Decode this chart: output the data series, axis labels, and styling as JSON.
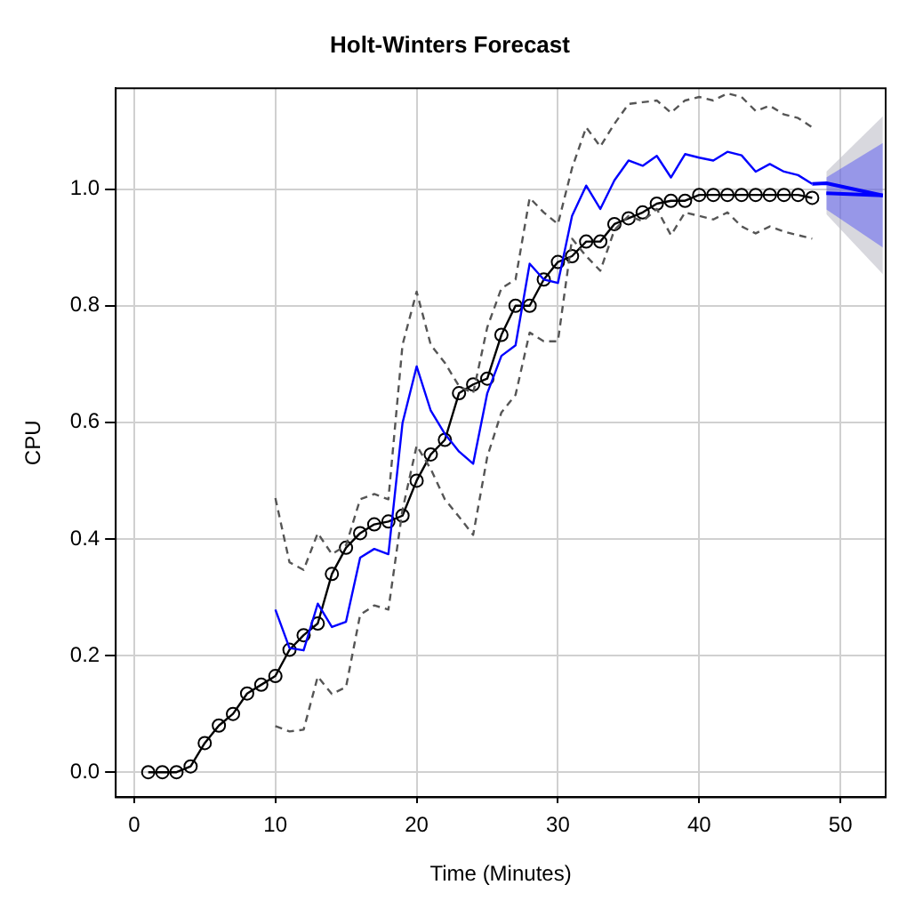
{
  "chart_data": {
    "type": "line",
    "title": "Holt-Winters Forecast",
    "xlabel": "Time (Minutes)",
    "ylabel": "CPU",
    "xlim": [
      -1.3,
      53.2
    ],
    "ylim": [
      -0.043,
      1.173
    ],
    "xticks": [
      0,
      10,
      20,
      30,
      40,
      50
    ],
    "yticks": [
      {
        "value": 0,
        "label": "0.0"
      },
      {
        "value": 0.2,
        "label": "0.2"
      },
      {
        "value": 0.4,
        "label": "0.4"
      },
      {
        "value": 0.6,
        "label": "0.6"
      },
      {
        "value": 0.8,
        "label": "0.8"
      },
      {
        "value": 1,
        "label": "1.0"
      }
    ],
    "grid": true,
    "legend": false,
    "line_style": "solid",
    "series": [
      {
        "color": "#0000ff",
        "x": [
          48,
          49,
          53
        ],
        "values": [
          1.009,
          1.01,
          0.989
        ],
        "lower": [
          null,
          0.957,
          0.854
        ],
        "upper": [
          null,
          1.03,
          1.125
        ],
        "marker": "none"
      },
      {
        "color": "#0000ff",
        "x": [
          49,
          53
        ],
        "values": [
          0.993,
          0.989
        ],
        "lower": [
          0.965,
          0.9
        ],
        "upper": [
          1.02,
          1.079
        ],
        "marker": "none"
      },
      {
        "color": "#000000",
        "marker": "circle",
        "x": [
          1,
          2,
          3,
          4,
          5,
          6,
          7,
          8,
          9,
          10,
          11,
          12,
          13,
          14,
          15,
          16,
          17,
          18,
          19,
          20,
          21,
          22,
          23,
          24,
          25,
          26,
          27,
          28,
          29,
          30,
          31,
          32,
          33,
          34,
          35,
          36,
          37,
          38,
          39,
          40,
          41,
          42,
          43,
          44,
          45,
          46,
          47,
          48
        ],
        "values": [
          0,
          0,
          0,
          0.01,
          0.05,
          0.08,
          0.1,
          0.135,
          0.15,
          0.165,
          0.21,
          0.235,
          0.255,
          0.34,
          0.385,
          0.41,
          0.425,
          0.43,
          0.44,
          0.5,
          0.545,
          0.57,
          0.65,
          0.665,
          0.675,
          0.75,
          0.8,
          0.8,
          0.845,
          0.875,
          0.885,
          0.91,
          0.91,
          0.94,
          0.95,
          0.96,
          0.975,
          0.98,
          0.98,
          0.99,
          0.99,
          0.99,
          0.99,
          0.99,
          0.99,
          0.99,
          0.99,
          0.985
        ]
      },
      {
        "color": "#0000ff",
        "marker": "none",
        "x": [
          10,
          11,
          12,
          13,
          14,
          15,
          16,
          17,
          18,
          19,
          20,
          21,
          22,
          23,
          24,
          25,
          26,
          27,
          28,
          29,
          30,
          31,
          32,
          33,
          34,
          35,
          36,
          37,
          38,
          39,
          40,
          41,
          42,
          43,
          44,
          45,
          46,
          47,
          48
        ],
        "values": [
          0.279,
          0.213,
          0.209,
          0.289,
          0.249,
          0.258,
          0.368,
          0.383,
          0.374,
          0.599,
          0.696,
          0.62,
          0.58,
          0.55,
          0.529,
          0.65,
          0.714,
          0.732,
          0.872,
          0.845,
          0.839,
          0.954,
          1.006,
          0.966,
          1.015,
          1.049,
          1.04,
          1.057,
          1.02,
          1.06,
          1.054,
          1.049,
          1.064,
          1.058,
          1.03,
          1.043,
          1.03,
          1.024,
          1.009
        ]
      },
      {
        "color": "#555555",
        "marker": "none",
        "line_style": "dashed",
        "x": [
          10,
          11,
          12,
          13,
          14,
          15,
          16,
          17,
          18,
          19,
          20,
          21,
          22,
          23,
          24,
          25,
          26,
          27,
          28,
          29,
          30,
          31,
          32,
          33,
          34,
          35,
          36,
          37,
          38,
          39,
          40,
          41,
          42,
          43,
          44,
          45,
          46,
          47,
          48
        ],
        "values": [
          0.47,
          0.36,
          0.347,
          0.41,
          0.374,
          0.389,
          0.468,
          0.477,
          0.468,
          0.733,
          0.824,
          0.733,
          0.702,
          0.662,
          0.65,
          0.763,
          0.83,
          0.845,
          0.985,
          0.96,
          0.94,
          1.036,
          1.106,
          1.073,
          1.112,
          1.146,
          1.149,
          1.152,
          1.131,
          1.152,
          1.158,
          1.152,
          1.164,
          1.158,
          1.134,
          1.143,
          1.128,
          1.122,
          1.106
        ]
      },
      {
        "color": "#555555",
        "marker": "none",
        "line_style": "dashed",
        "x": [
          10,
          11,
          12,
          13,
          14,
          15,
          16,
          17,
          18,
          19,
          20,
          21,
          22,
          23,
          24,
          25,
          26,
          27,
          28,
          29,
          30,
          31,
          32,
          33,
          34,
          35,
          36,
          37,
          38,
          39,
          40,
          41,
          42,
          43,
          44,
          45,
          46,
          47,
          48
        ],
        "values": [
          0.079,
          0.07,
          0.073,
          0.164,
          0.134,
          0.146,
          0.27,
          0.286,
          0.279,
          0.45,
          0.56,
          0.52,
          0.468,
          0.438,
          0.407,
          0.541,
          0.617,
          0.647,
          0.754,
          0.739,
          0.739,
          0.915,
          0.885,
          0.86,
          0.93,
          0.954,
          0.945,
          0.966,
          0.921,
          0.96,
          0.954,
          0.948,
          0.96,
          0.936,
          0.924,
          0.936,
          0.927,
          0.921,
          0.915
        ]
      }
    ]
  }
}
